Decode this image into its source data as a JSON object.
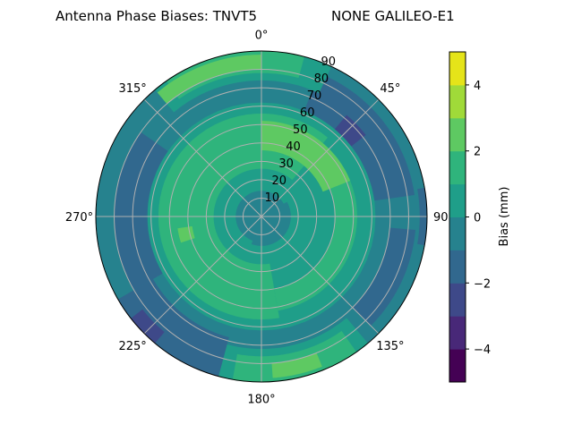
{
  "chart_data": {
    "type": "polar-contour",
    "title_left": "Antenna Phase Biases: TNVT5",
    "title_right": "NONE GALILEO-E1",
    "theta_zero": "N",
    "theta_direction": "clockwise",
    "theta_ticks": [
      "0°",
      "45°",
      "90°",
      "135°",
      "180°",
      "225°",
      "270°",
      "315°"
    ],
    "theta_tick_values": [
      0,
      45,
      90,
      135,
      180,
      225,
      270,
      315
    ],
    "r_ticks": [
      "10",
      "20",
      "30",
      "40",
      "50",
      "60",
      "70",
      "80",
      "90"
    ],
    "r_tick_values": [
      10,
      20,
      30,
      40,
      50,
      60,
      70,
      80,
      90
    ],
    "rlim": [
      0,
      90
    ],
    "grid": true,
    "colormap": "viridis",
    "levels": [
      -5,
      -4,
      -3,
      -2,
      -1,
      0,
      1,
      2,
      3,
      4,
      5
    ],
    "level_colors": [
      "#440154",
      "#482878",
      "#3e4989",
      "#31688e",
      "#26828e",
      "#1f9e89",
      "#2fb47c",
      "#5ec962",
      "#a0da39",
      "#e5e419"
    ],
    "colorbar": {
      "label": "Bias (mm)",
      "ticks": [
        "−4",
        "−2",
        "0",
        "2",
        "4"
      ],
      "tick_values": [
        -4,
        -2,
        0,
        2,
        4
      ],
      "range": [
        -5,
        5
      ]
    },
    "regions": [
      {
        "bias": [
          -1,
          0
        ],
        "az": [
          0,
          360
        ],
        "r": [
          0,
          90
        ]
      },
      {
        "bias": [
          0,
          1
        ],
        "az": [
          0,
          360
        ],
        "r": [
          14,
          62
        ]
      },
      {
        "bias": [
          1,
          2
        ],
        "az": [
          170,
          400
        ],
        "r": [
          26,
          56
        ]
      },
      {
        "bias": [
          1,
          2
        ],
        "az": [
          40,
          170
        ],
        "r": [
          40,
          52
        ]
      },
      {
        "bias": [
          2,
          3
        ],
        "az": [
          0,
          68
        ],
        "r": [
          36,
          52
        ]
      },
      {
        "bias": [
          2,
          3
        ],
        "az": [
          252,
          262
        ],
        "r": [
          38,
          46
        ]
      },
      {
        "bias": [
          -1,
          0
        ],
        "az": [
          60,
          200
        ],
        "r": [
          0,
          16
        ]
      },
      {
        "bias": [
          -2,
          -1
        ],
        "az": [
          22,
          82
        ],
        "r": [
          62,
          84
        ]
      },
      {
        "bias": [
          -3,
          -2
        ],
        "az": [
          40,
          52
        ],
        "r": [
          62,
          72
        ]
      },
      {
        "bias": [
          -2,
          -1
        ],
        "az": [
          240,
          305
        ],
        "r": [
          62,
          80
        ]
      },
      {
        "bias": [
          -2,
          -1
        ],
        "az": [
          195,
          240
        ],
        "r": [
          68,
          90
        ]
      },
      {
        "bias": [
          -3,
          -2
        ],
        "az": [
          220,
          232
        ],
        "r": [
          82,
          90
        ]
      },
      {
        "bias": [
          -2,
          -1
        ],
        "az": [
          95,
          135
        ],
        "r": [
          70,
          84
        ]
      },
      {
        "bias": [
          0,
          1
        ],
        "az": [
          320,
          385
        ],
        "r": [
          74,
          90
        ]
      },
      {
        "bias": [
          1,
          2
        ],
        "az": [
          325,
          375
        ],
        "r": [
          78,
          90
        ]
      },
      {
        "bias": [
          2,
          3
        ],
        "az": [
          320,
          360
        ],
        "r": [
          80,
          88
        ]
      },
      {
        "bias": [
          0,
          1
        ],
        "az": [
          140,
          195
        ],
        "r": [
          72,
          90
        ]
      },
      {
        "bias": [
          1,
          2
        ],
        "az": [
          145,
          190
        ],
        "r": [
          76,
          90
        ]
      },
      {
        "bias": [
          2,
          3
        ],
        "az": [
          158,
          176
        ],
        "r": [
          80,
          88
        ]
      },
      {
        "bias": [
          -2,
          -1
        ],
        "az": [
          80,
          100
        ],
        "r": [
          86,
          90
        ]
      }
    ]
  }
}
